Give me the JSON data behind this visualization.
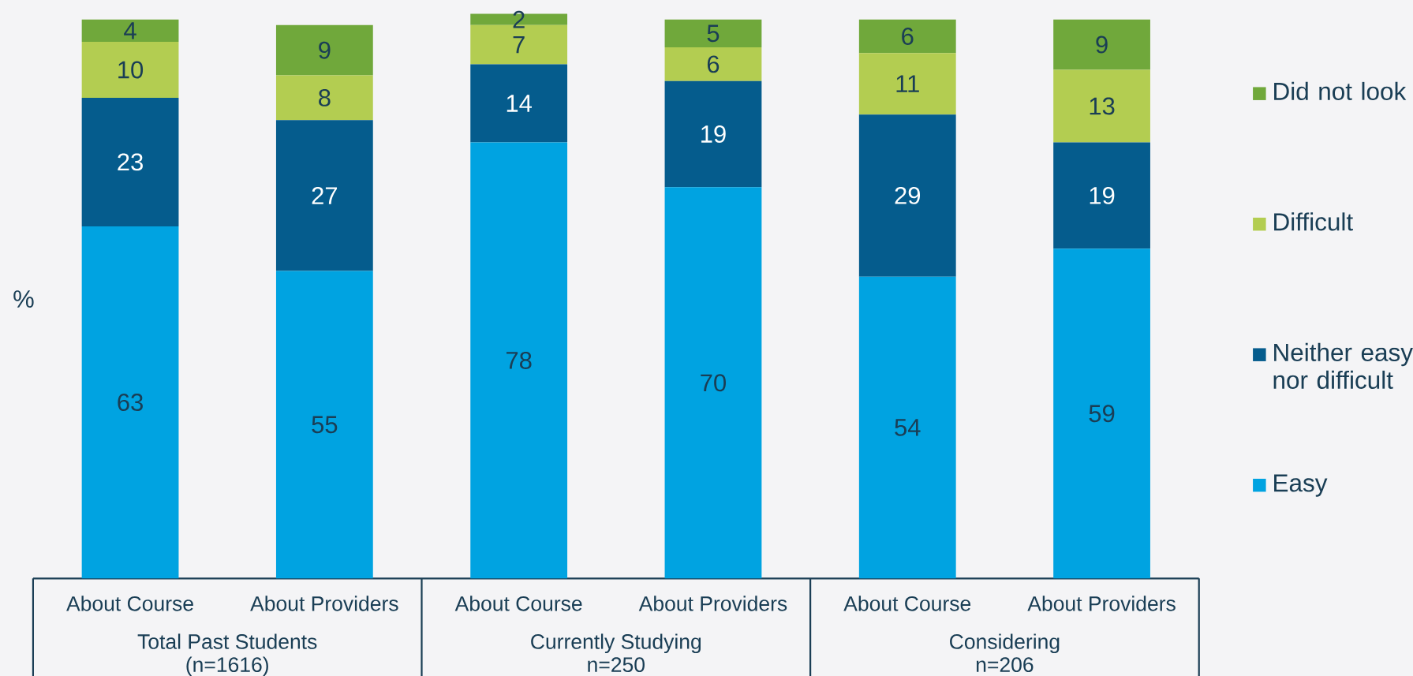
{
  "chart_data": {
    "type": "bar",
    "stacked": true,
    "ylabel": "%",
    "categories": [
      "About Course",
      "About Providers",
      "About Course",
      "About Providers",
      "About Course",
      "About Providers"
    ],
    "series": [
      {
        "name": "Easy",
        "color": "#00a3e1",
        "values": [
          63,
          55,
          78,
          70,
          54,
          59
        ]
      },
      {
        "name": "Neither easy nor difficult",
        "color": "#055c8d",
        "values": [
          23,
          27,
          14,
          19,
          29,
          19
        ]
      },
      {
        "name": "Difficult",
        "color": "#b3cd51",
        "values": [
          10,
          8,
          7,
          6,
          11,
          13
        ]
      },
      {
        "name": "Did not look",
        "color": "#70a83b",
        "values": [
          4,
          9,
          2,
          5,
          6,
          9
        ]
      }
    ],
    "annotations": [
      "Total Past Students",
      "(n=1616)",
      "Currently Studying",
      "n=250",
      "Considering",
      "n=206"
    ],
    "data_labels": true,
    "legend": "right"
  }
}
